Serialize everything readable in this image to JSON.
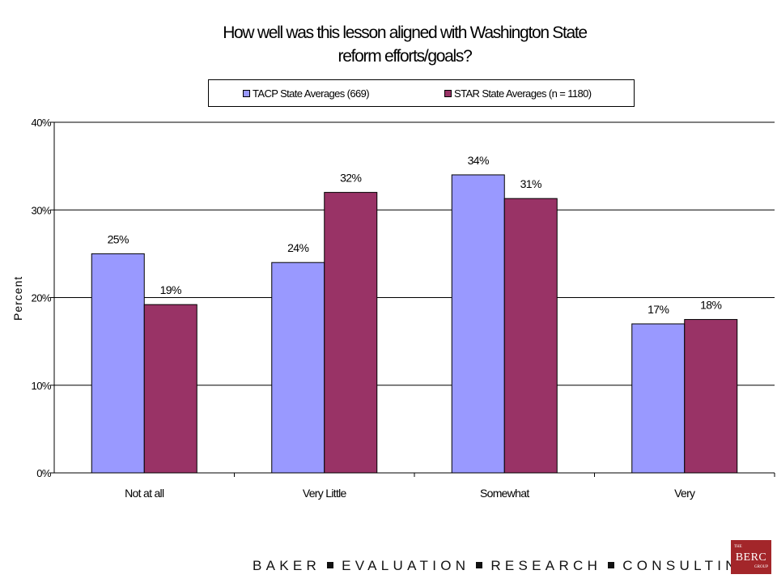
{
  "chart_data": {
    "type": "bar",
    "title_lines": [
      "How well was this lesson aligned with Washington State",
      "reform efforts/goals?"
    ],
    "ylabel": "Percent",
    "xlabel": "",
    "ylim": [
      0,
      40
    ],
    "yticks": [
      "0%",
      "10%",
      "20%",
      "30%",
      "40%"
    ],
    "categories": [
      "Not at all",
      "Very Little",
      "Somewhat",
      "Very"
    ],
    "series": [
      {
        "name": "TACP State Averages (669)",
        "color": "#9999ff",
        "values": [
          25,
          24,
          34,
          17
        ],
        "labels": [
          "25%",
          "24%",
          "34%",
          "17%"
        ]
      },
      {
        "name": "STAR State Averages (n = 1180)",
        "color": "#993366",
        "values": [
          19.2,
          32,
          31.3,
          17.5
        ],
        "labels": [
          "19%",
          "32%",
          "31%",
          "18%"
        ]
      }
    ],
    "grid": true,
    "legend_position": "top"
  },
  "footer": {
    "words": [
      "BAKER",
      "EVALUATION",
      "RESEARCH",
      "CONSULTING"
    ]
  },
  "logo": {
    "top": "THE",
    "main": "BERC",
    "bottom": "GROUP"
  }
}
